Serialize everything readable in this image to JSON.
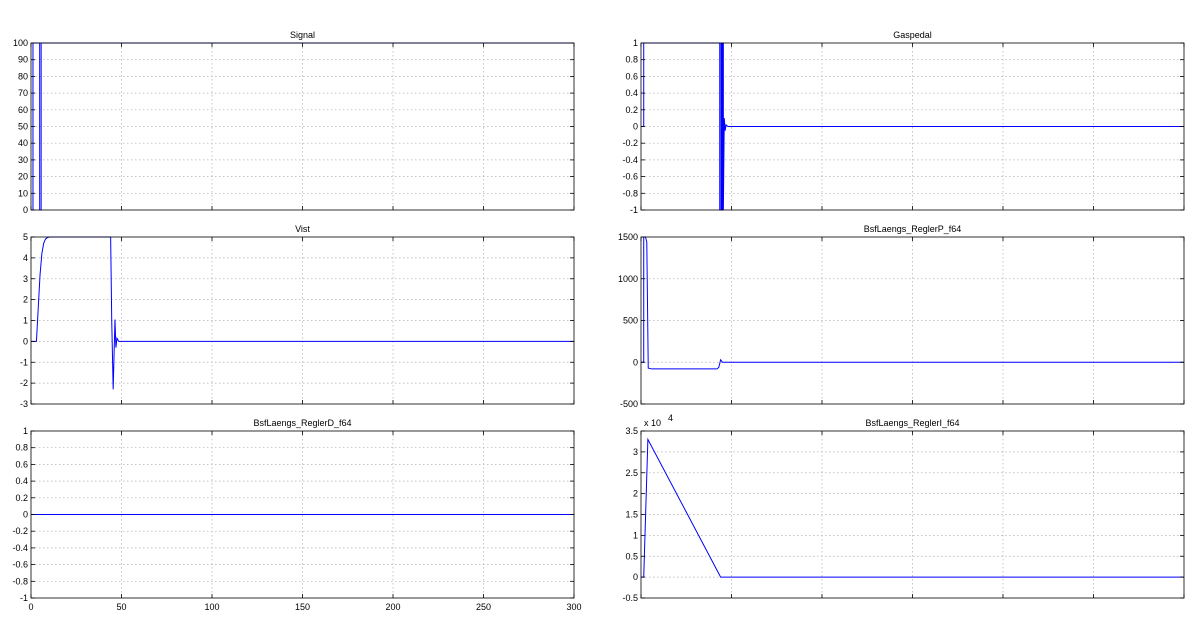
{
  "figure": {
    "series_color": "#0000ff",
    "grid": true
  },
  "chart_data": [
    {
      "id": "signal",
      "type": "line",
      "title": "Signal",
      "xlim": [
        0,
        300
      ],
      "ylim": [
        0,
        100
      ],
      "yticks": [
        0,
        10,
        20,
        30,
        40,
        50,
        60,
        70,
        80,
        90,
        100
      ],
      "ytick_labels": [
        "0",
        "10",
        "20",
        "30",
        "40",
        "50",
        "60",
        "70",
        "80",
        "90",
        "100"
      ],
      "xticks": [
        0,
        50,
        100,
        150,
        200,
        250,
        300
      ],
      "xtick_labels": [],
      "exponent_label": "",
      "series": [
        {
          "x": [
            0,
            1.1,
            1.1,
            4.8,
            4.8,
            5.6,
            5.6,
            300
          ],
          "y": [
            0,
            0,
            100,
            100,
            0,
            0,
            100,
            100
          ]
        }
      ]
    },
    {
      "id": "gaspedal",
      "type": "line",
      "title": "Gaspedal",
      "xlim": [
        0,
        300
      ],
      "ylim": [
        -1,
        1
      ],
      "yticks": [
        -1,
        -0.8,
        -0.6,
        -0.4,
        -0.2,
        0,
        0.2,
        0.4,
        0.6,
        0.8,
        1
      ],
      "ytick_labels": [
        "-1",
        "-0.8",
        "-0.6",
        "-0.4",
        "-0.2",
        "0",
        "0.2",
        "0.4",
        "0.6",
        "0.8",
        "1"
      ],
      "xticks": [
        0,
        50,
        100,
        150,
        200,
        250,
        300
      ],
      "xtick_labels": [],
      "exponent_label": "",
      "series": [
        {
          "x": [
            0,
            1.5,
            1.5,
            43.5,
            43.5,
            44.2,
            44.2,
            44.6,
            44.6,
            45.1,
            45.1,
            45.5,
            45.5,
            46,
            46.5,
            47,
            48,
            300
          ],
          "y": [
            0,
            0,
            1,
            1,
            -1,
            -1,
            1,
            1,
            -1,
            -1,
            1,
            1,
            -1,
            0.1,
            -0.05,
            0.02,
            0,
            0
          ]
        }
      ]
    },
    {
      "id": "vist",
      "type": "line",
      "title": "Vist",
      "xlim": [
        0,
        300
      ],
      "ylim": [
        -3,
        5
      ],
      "yticks": [
        -3,
        -2,
        -1,
        0,
        1,
        2,
        3,
        4,
        5
      ],
      "ytick_labels": [
        "-3",
        "-2",
        "-1",
        "0",
        "1",
        "2",
        "3",
        "4",
        "5"
      ],
      "xticks": [
        0,
        50,
        100,
        150,
        200,
        250,
        300
      ],
      "xtick_labels": [],
      "exponent_label": "",
      "series": [
        {
          "x": [
            0,
            3,
            4,
            5,
            6,
            7,
            8,
            9,
            10,
            12,
            44,
            44.6,
            45.4,
            45.9,
            46.4,
            46.9,
            47.5,
            48.5,
            300
          ],
          "y": [
            0,
            0,
            1.6,
            3.2,
            4.2,
            4.7,
            4.9,
            4.97,
            5,
            5,
            5,
            1,
            -2.3,
            -0.6,
            1.05,
            -0.3,
            0.15,
            0,
            0
          ]
        }
      ]
    },
    {
      "id": "reglerp",
      "type": "line",
      "title": "BsfLaengs_ReglerP_f64",
      "xlim": [
        0,
        300
      ],
      "ylim": [
        -500,
        1500
      ],
      "yticks": [
        -500,
        0,
        500,
        1000,
        1500
      ],
      "ytick_labels": [
        "-500",
        "0",
        "500",
        "1000",
        "1500"
      ],
      "xticks": [
        0,
        50,
        100,
        150,
        200,
        250,
        300
      ],
      "xtick_labels": [],
      "exponent_label": "",
      "series": [
        {
          "x": [
            0,
            1.5,
            1.5,
            2.5,
            3.2,
            3.2,
            4,
            6,
            42,
            43,
            44,
            45,
            300
          ],
          "y": [
            0,
            0,
            1500,
            1500,
            1440,
            1440,
            -70,
            -80,
            -80,
            -60,
            30,
            0,
            0
          ]
        }
      ]
    },
    {
      "id": "reglerd",
      "type": "line",
      "title": "BsfLaengs_ReglerD_f64",
      "xlim": [
        0,
        300
      ],
      "ylim": [
        -1,
        1
      ],
      "yticks": [
        -1,
        -0.8,
        -0.6,
        -0.4,
        -0.2,
        0,
        0.2,
        0.4,
        0.6,
        0.8,
        1
      ],
      "ytick_labels": [
        "-1",
        "-0.8",
        "-0.6",
        "-0.4",
        "-0.2",
        "0",
        "0.2",
        "0.4",
        "0.6",
        "0.8",
        "1"
      ],
      "xticks": [
        0,
        50,
        100,
        150,
        200,
        250,
        300
      ],
      "xtick_labels": [
        "0",
        "50",
        "100",
        "150",
        "200",
        "250",
        "300"
      ],
      "exponent_label": "",
      "series": [
        {
          "x": [
            0,
            300
          ],
          "y": [
            0,
            0
          ]
        }
      ]
    },
    {
      "id": "regleri",
      "type": "line",
      "title": "BsfLaengs_ReglerI_f64",
      "xlim": [
        0,
        300
      ],
      "ylim": [
        -0.5,
        3.5
      ],
      "yticks": [
        -0.5,
        0,
        0.5,
        1,
        1.5,
        2,
        2.5,
        3,
        3.5
      ],
      "ytick_labels": [
        "-0.5",
        "0",
        "0.5",
        "1",
        "1.5",
        "2",
        "2.5",
        "3",
        "3.5"
      ],
      "xticks": [
        0,
        50,
        100,
        150,
        200,
        250,
        300
      ],
      "xtick_labels": [],
      "exponent_label": "x 10",
      "exponent_power": "4",
      "series": [
        {
          "x": [
            0,
            1.5,
            3.8,
            44,
            45,
            300
          ],
          "y": [
            0,
            0,
            3.3,
            0,
            0,
            0
          ]
        }
      ]
    }
  ]
}
